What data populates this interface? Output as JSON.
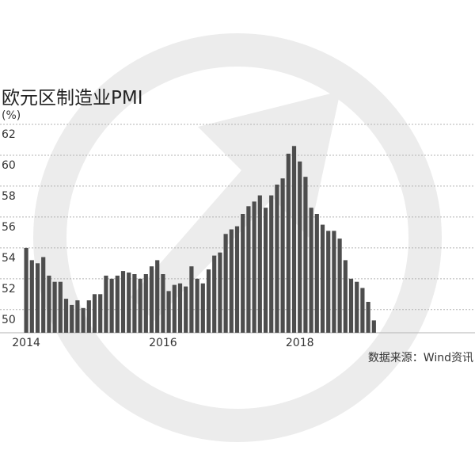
{
  "colors": {
    "bar": "#4d4d4d",
    "grid": "#b3b3b3",
    "watermark": "#ececec"
  },
  "watermark": {
    "icon": "circular-arrow-logo-watermark"
  },
  "chart_data": {
    "type": "bar",
    "title": "欧元区制造业PMI",
    "unit_label": "(%)",
    "source": "数据来源：Wind资讯",
    "ylim": [
      48.5,
      62
    ],
    "yticks": [
      50,
      52,
      54,
      56,
      58,
      60,
      62
    ],
    "grid": "horizontal-dotted",
    "x_tick_labels": [
      {
        "label": "2014",
        "at_index": 0
      },
      {
        "label": "2016",
        "at_index": 24
      },
      {
        "label": "2018",
        "at_index": 48
      }
    ],
    "categories": [
      "2014-01",
      "2014-02",
      "2014-03",
      "2014-04",
      "2014-05",
      "2014-06",
      "2014-07",
      "2014-08",
      "2014-09",
      "2014-10",
      "2014-11",
      "2014-12",
      "2015-01",
      "2015-02",
      "2015-03",
      "2015-04",
      "2015-05",
      "2015-06",
      "2015-07",
      "2015-08",
      "2015-09",
      "2015-10",
      "2015-11",
      "2015-12",
      "2016-01",
      "2016-02",
      "2016-03",
      "2016-04",
      "2016-05",
      "2016-06",
      "2016-07",
      "2016-08",
      "2016-09",
      "2016-10",
      "2016-11",
      "2016-12",
      "2017-01",
      "2017-02",
      "2017-03",
      "2017-04",
      "2017-05",
      "2017-06",
      "2017-07",
      "2017-08",
      "2017-09",
      "2017-10",
      "2017-11",
      "2017-12",
      "2018-01",
      "2018-02",
      "2018-03",
      "2018-04",
      "2018-05",
      "2018-06",
      "2018-07",
      "2018-08",
      "2018-09",
      "2018-10",
      "2018-11",
      "2018-12",
      "2019-01",
      "2019-02"
    ],
    "values": [
      54.0,
      53.2,
      53.0,
      53.4,
      52.2,
      51.8,
      51.8,
      50.7,
      50.3,
      50.6,
      50.1,
      50.6,
      51.0,
      51.0,
      52.2,
      52.0,
      52.2,
      52.5,
      52.4,
      52.3,
      52.0,
      52.3,
      52.8,
      53.2,
      52.3,
      51.2,
      51.6,
      51.7,
      51.5,
      52.8,
      52.0,
      51.7,
      52.6,
      53.5,
      53.7,
      54.9,
      55.2,
      55.4,
      56.2,
      56.7,
      57.0,
      57.4,
      56.6,
      57.4,
      58.1,
      58.5,
      60.1,
      60.6,
      59.6,
      58.6,
      56.6,
      56.2,
      55.5,
      55.1,
      55.1,
      54.6,
      53.2,
      52.0,
      51.8,
      51.4,
      50.5,
      49.3
    ]
  }
}
